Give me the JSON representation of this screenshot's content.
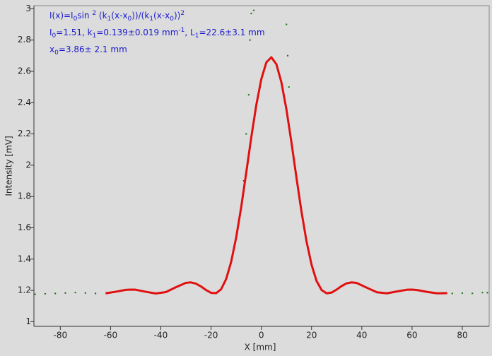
{
  "chart_data": {
    "type": "scatter",
    "xlabel": "X [mm]",
    "ylabel": "Intensity [mV]",
    "xlim": [
      -90.5,
      90.7
    ],
    "ylim": [
      0.97,
      3.02
    ],
    "xticks": [
      -80,
      -60,
      -40,
      -20,
      0,
      20,
      40,
      60,
      80
    ],
    "yticks": [
      1,
      1.2,
      1.4,
      1.6,
      1.8,
      2,
      2.2,
      2.4,
      2.6,
      2.8,
      3
    ],
    "annotations": [
      [
        {
          "text": "I(x)=I"
        },
        {
          "text": "0",
          "style": "sub"
        },
        {
          "text": "sin "
        },
        {
          "text": "2",
          "style": "sup"
        },
        {
          "text": " (k"
        },
        {
          "text": "1",
          "style": "sub"
        },
        {
          "text": "(x-x"
        },
        {
          "text": "0",
          "style": "sub"
        },
        {
          "text": "))/(k"
        },
        {
          "text": "1",
          "style": "sub"
        },
        {
          "text": "(x-x"
        },
        {
          "text": "0",
          "style": "sub"
        },
        {
          "text": "))"
        },
        {
          "text": "2",
          "style": "sup"
        }
      ],
      [
        {
          "text": "I"
        },
        {
          "text": "0",
          "style": "sub"
        },
        {
          "text": "=1.51,  k"
        },
        {
          "text": "1",
          "style": "sub"
        },
        {
          "text": "=0.139±0.019 mm"
        },
        {
          "text": "-1",
          "style": "sup"
        },
        {
          "text": ",   L"
        },
        {
          "text": "1",
          "style": "sub"
        },
        {
          "text": "=22.6±3.1 mm"
        }
      ],
      [
        {
          "text": "x"
        },
        {
          "text": "0",
          "style": "sub"
        },
        {
          "text": "=3.86±  2.1 mm"
        }
      ]
    ],
    "series": [
      {
        "color": "#1f7a1f",
        "mode": "markers",
        "x": [
          -90,
          -86,
          -82,
          -78,
          -74,
          -70,
          -66,
          76,
          80,
          84,
          88,
          90,
          -7,
          -6,
          -5,
          -4.5,
          -4,
          -3,
          10,
          10.5,
          11
        ],
        "values": [
          1.175,
          1.178,
          1.18,
          1.183,
          1.186,
          1.183,
          1.18,
          1.18,
          1.182,
          1.181,
          1.186,
          1.185,
          1.9,
          2.2,
          2.45,
          2.8,
          2.97,
          2.99,
          2.9,
          2.7,
          2.5
        ]
      },
      {
        "color": "#e01010",
        "mode": "line",
        "x": [
          -62,
          -58,
          -54,
          -52,
          -50,
          -46,
          -42,
          -38,
          -34,
          -30,
          -28,
          -26,
          -24,
          -22,
          -20,
          -18,
          -16,
          -14,
          -12,
          -10,
          -8,
          -6,
          -4,
          -2,
          0,
          2,
          4,
          6,
          8,
          10,
          12,
          14,
          16,
          18,
          20,
          22,
          24,
          26,
          28,
          30,
          32,
          34,
          36,
          38,
          42,
          46,
          50,
          54,
          58,
          60,
          62,
          66,
          70,
          74
        ],
        "values": [
          1.181,
          1.191,
          1.203,
          1.205,
          1.204,
          1.191,
          1.18,
          1.189,
          1.22,
          1.248,
          1.251,
          1.243,
          1.225,
          1.202,
          1.184,
          1.182,
          1.207,
          1.272,
          1.382,
          1.538,
          1.732,
          1.952,
          2.177,
          2.384,
          2.55,
          2.657,
          2.69,
          2.646,
          2.53,
          2.357,
          2.146,
          1.92,
          1.703,
          1.513,
          1.364,
          1.26,
          1.202,
          1.181,
          1.186,
          1.205,
          1.228,
          1.245,
          1.251,
          1.247,
          1.217,
          1.188,
          1.181,
          1.193,
          1.204,
          1.205,
          1.202,
          1.19,
          1.181,
          1.182
        ]
      }
    ]
  }
}
